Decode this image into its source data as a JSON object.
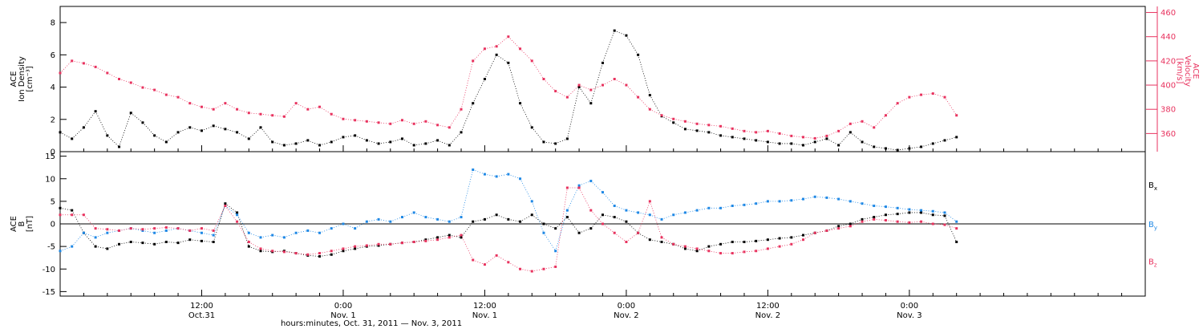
{
  "colors": {
    "black": "#000000",
    "pink": "#e8335f",
    "blue": "#1f88e5",
    "axis": "#000000"
  },
  "footer": {
    "xlabel": "hours:minutes, Oct. 31, 2011 — Nov. 3, 2011"
  },
  "x_axis": {
    "range_hours": [
      0,
      92
    ],
    "ticks": [
      {
        "hour": 12,
        "time": "12:00",
        "date": "Oct.31"
      },
      {
        "hour": 24,
        "time": "0:00",
        "date": "Nov. 1"
      },
      {
        "hour": 36,
        "time": "12:00",
        "date": "Nov. 1"
      },
      {
        "hour": 48,
        "time": "0:00",
        "date": "Nov. 2"
      },
      {
        "hour": 60,
        "time": "12:00",
        "date": "Nov. 2"
      },
      {
        "hour": 72,
        "time": "0:00",
        "date": "Nov. 3"
      }
    ]
  },
  "chart_data": [
    {
      "type": "scatter",
      "panel": "top",
      "ylabel_left": [
        "ACE",
        "Ion Density",
        "[cm⁻³]"
      ],
      "ylabel_right": [
        "ACE",
        "Velocity",
        "[km/s]"
      ],
      "ylim": [
        0,
        9
      ],
      "yticks": [
        "0",
        "2",
        "4",
        "6",
        "8"
      ],
      "ytick_values": [
        0,
        2,
        4,
        6,
        8
      ],
      "y2lim": [
        345,
        465
      ],
      "y2ticks": [
        "360",
        "380",
        "400",
        "420",
        "440",
        "460"
      ],
      "y2tick_values": [
        360,
        380,
        400,
        420,
        440,
        460
      ],
      "series": [
        {
          "name": "",
          "color": "#000000",
          "axis": "left",
          "x": [
            0,
            1,
            2,
            3,
            4,
            5,
            6,
            7,
            8,
            9,
            10,
            11,
            12,
            13,
            14,
            15,
            16,
            17,
            18,
            19,
            20,
            21,
            22,
            23,
            24,
            25,
            26,
            27,
            28,
            29,
            30,
            31,
            32,
            33,
            34,
            35,
            36,
            37,
            38,
            39,
            40,
            41,
            42,
            43,
            44,
            45,
            46,
            47,
            48,
            49,
            50,
            51,
            52,
            53,
            54,
            55,
            56,
            57,
            58,
            59,
            60,
            61,
            62,
            63,
            64,
            65,
            66,
            67,
            68,
            69,
            70,
            71,
            72,
            73,
            74,
            75,
            76
          ],
          "y": [
            1.2,
            0.8,
            1.5,
            2.5,
            1.0,
            0.3,
            2.4,
            1.8,
            1.0,
            0.6,
            1.2,
            1.5,
            1.3,
            1.6,
            1.4,
            1.2,
            0.8,
            1.5,
            0.6,
            0.4,
            0.5,
            0.7,
            0.4,
            0.6,
            0.9,
            1.0,
            0.7,
            0.5,
            0.6,
            0.8,
            0.4,
            0.5,
            0.7,
            0.4,
            1.2,
            3.0,
            4.5,
            6.0,
            5.5,
            3.0,
            1.5,
            0.6,
            0.5,
            0.8,
            4.0,
            3.0,
            5.5,
            7.5,
            7.2,
            6.0,
            3.5,
            2.2,
            1.8,
            1.4,
            1.3,
            1.2,
            1.0,
            0.9,
            0.8,
            0.7,
            0.6,
            0.5,
            0.5,
            0.4,
            0.6,
            0.8,
            0.4,
            1.2,
            0.6,
            0.3,
            0.2,
            0.1,
            0.2,
            0.3,
            0.5,
            0.7,
            0.9
          ]
        },
        {
          "name": "",
          "color": "#e8335f",
          "axis": "right",
          "x": [
            0,
            1,
            2,
            3,
            4,
            5,
            6,
            7,
            8,
            9,
            10,
            11,
            12,
            13,
            14,
            15,
            16,
            17,
            18,
            19,
            20,
            21,
            22,
            23,
            24,
            25,
            26,
            27,
            28,
            29,
            30,
            31,
            32,
            33,
            34,
            35,
            36,
            37,
            38,
            39,
            40,
            41,
            42,
            43,
            44,
            45,
            46,
            47,
            48,
            49,
            50,
            51,
            52,
            53,
            54,
            55,
            56,
            57,
            58,
            59,
            60,
            61,
            62,
            63,
            64,
            65,
            66,
            67,
            68,
            69,
            70,
            71,
            72,
            73,
            74,
            75,
            76
          ],
          "y": [
            410,
            420,
            418,
            415,
            410,
            405,
            402,
            398,
            396,
            392,
            390,
            385,
            382,
            380,
            385,
            380,
            377,
            376,
            375,
            374,
            385,
            380,
            382,
            376,
            372,
            371,
            370,
            369,
            368,
            371,
            368,
            370,
            367,
            365,
            380,
            420,
            430,
            432,
            440,
            430,
            420,
            405,
            395,
            390,
            400,
            396,
            400,
            405,
            400,
            390,
            380,
            375,
            372,
            370,
            368,
            367,
            366,
            364,
            362,
            361,
            362,
            360,
            358,
            357,
            356,
            358,
            362,
            368,
            370,
            365,
            375,
            385,
            390,
            392,
            393,
            390,
            375
          ]
        }
      ]
    },
    {
      "type": "scatter",
      "panel": "bottom",
      "ylabel_left": [
        "ACE",
        "B",
        "[nT]"
      ],
      "ylim": [
        -16,
        16
      ],
      "yticks": [
        "-15",
        "-10",
        "-5",
        "0",
        "5",
        "10",
        "15"
      ],
      "ytick_values": [
        -15,
        -10,
        -5,
        0,
        5,
        10,
        15
      ],
      "zero_line": true,
      "legend": [
        {
          "label": "B",
          "sub": "x",
          "color": "#000000"
        },
        {
          "label": "B",
          "sub": "y",
          "color": "#1f88e5"
        },
        {
          "label": "B",
          "sub": "z",
          "color": "#e8335f"
        }
      ],
      "series": [
        {
          "name": "Bx",
          "color": "#000000",
          "x": [
            0,
            1,
            2,
            3,
            4,
            5,
            6,
            7,
            8,
            9,
            10,
            11,
            12,
            13,
            14,
            15,
            16,
            17,
            18,
            19,
            20,
            21,
            22,
            23,
            24,
            25,
            26,
            27,
            28,
            29,
            30,
            31,
            32,
            33,
            34,
            35,
            36,
            37,
            38,
            39,
            40,
            41,
            42,
            43,
            44,
            45,
            46,
            47,
            48,
            49,
            50,
            51,
            52,
            53,
            54,
            55,
            56,
            57,
            58,
            59,
            60,
            61,
            62,
            63,
            64,
            65,
            66,
            67,
            68,
            69,
            70,
            71,
            72,
            73,
            74,
            75,
            76
          ],
          "y": [
            3.5,
            3.0,
            -2.0,
            -5.0,
            -5.5,
            -4.5,
            -4.0,
            -4.2,
            -4.5,
            -4.0,
            -4.2,
            -3.5,
            -3.8,
            -4.0,
            4.5,
            2.5,
            -5.0,
            -6.0,
            -6.2,
            -6.0,
            -6.5,
            -7.0,
            -7.2,
            -6.8,
            -6.0,
            -5.5,
            -5.0,
            -4.8,
            -4.5,
            -4.2,
            -4.0,
            -3.5,
            -3.0,
            -2.5,
            -3.0,
            0.5,
            1.0,
            2.0,
            1.0,
            0.5,
            2.0,
            0.0,
            -1.0,
            1.5,
            -2.0,
            -1.0,
            2.0,
            1.5,
            0.5,
            -2.0,
            -3.5,
            -4.0,
            -4.5,
            -5.5,
            -6.0,
            -5.0,
            -4.5,
            -4.0,
            -4.0,
            -3.8,
            -3.5,
            -3.2,
            -3.0,
            -2.5,
            -2.0,
            -1.5,
            -0.5,
            0.0,
            1.0,
            1.5,
            2.0,
            2.2,
            2.5,
            2.5,
            2.0,
            1.8,
            -4.0
          ]
        },
        {
          "name": "By",
          "color": "#1f88e5",
          "x": [
            0,
            1,
            2,
            3,
            4,
            5,
            6,
            7,
            8,
            9,
            10,
            11,
            12,
            13,
            14,
            15,
            16,
            17,
            18,
            19,
            20,
            21,
            22,
            23,
            24,
            25,
            26,
            27,
            28,
            29,
            30,
            31,
            32,
            33,
            34,
            35,
            36,
            37,
            38,
            39,
            40,
            41,
            42,
            43,
            44,
            45,
            46,
            47,
            48,
            49,
            50,
            51,
            52,
            53,
            54,
            55,
            56,
            57,
            58,
            59,
            60,
            61,
            62,
            63,
            64,
            65,
            66,
            67,
            68,
            69,
            70,
            71,
            72,
            73,
            74,
            75,
            76
          ],
          "y": [
            -6.0,
            -5.0,
            -2.0,
            -3.0,
            -2.0,
            -1.5,
            -1.0,
            -1.5,
            -2.0,
            -1.5,
            -1.0,
            -1.5,
            -2.0,
            -2.5,
            4.0,
            2.0,
            -2.0,
            -3.0,
            -2.5,
            -3.0,
            -2.0,
            -1.5,
            -2.0,
            -1.0,
            0.0,
            -1.0,
            0.5,
            1.0,
            0.5,
            1.5,
            2.5,
            1.5,
            1.0,
            0.5,
            1.5,
            12.0,
            11.0,
            10.5,
            11.0,
            10.0,
            5.0,
            -2.0,
            -6.0,
            3.0,
            8.5,
            9.5,
            7.0,
            4.0,
            3.0,
            2.5,
            2.0,
            1.0,
            2.0,
            2.5,
            3.0,
            3.5,
            3.5,
            4.0,
            4.2,
            4.5,
            5.0,
            5.0,
            5.2,
            5.5,
            6.0,
            5.8,
            5.5,
            5.0,
            4.5,
            4.0,
            3.8,
            3.5,
            3.2,
            3.0,
            2.8,
            2.5,
            0.5
          ]
        },
        {
          "name": "Bz",
          "color": "#e8335f",
          "x": [
            0,
            1,
            2,
            3,
            4,
            5,
            6,
            7,
            8,
            9,
            10,
            11,
            12,
            13,
            14,
            15,
            16,
            17,
            18,
            19,
            20,
            21,
            22,
            23,
            24,
            25,
            26,
            27,
            28,
            29,
            30,
            31,
            32,
            33,
            34,
            35,
            36,
            37,
            38,
            39,
            40,
            41,
            42,
            43,
            44,
            45,
            46,
            47,
            48,
            49,
            50,
            51,
            52,
            53,
            54,
            55,
            56,
            57,
            58,
            59,
            60,
            61,
            62,
            63,
            64,
            65,
            66,
            67,
            68,
            69,
            70,
            71,
            72,
            73,
            74,
            75,
            76
          ],
          "y": [
            2.0,
            2.0,
            2.0,
            -1.0,
            -1.2,
            -1.5,
            -1.0,
            -1.2,
            -1.0,
            -0.8,
            -1.0,
            -1.5,
            -1.0,
            -1.5,
            4.0,
            0.5,
            -4.0,
            -5.5,
            -6.0,
            -6.2,
            -6.5,
            -6.8,
            -6.5,
            -6.0,
            -5.5,
            -5.0,
            -4.8,
            -4.5,
            -4.5,
            -4.2,
            -4.0,
            -3.8,
            -3.5,
            -3.0,
            -2.5,
            -8.0,
            -9.0,
            -7.0,
            -8.5,
            -10.0,
            -10.5,
            -10.0,
            -9.5,
            8.0,
            8.0,
            3.0,
            0.0,
            -2.0,
            -4.0,
            -2.0,
            5.0,
            -3.0,
            -4.5,
            -5.0,
            -5.5,
            -6.0,
            -6.5,
            -6.5,
            -6.2,
            -6.0,
            -5.5,
            -5.0,
            -4.5,
            -3.5,
            -2.0,
            -1.5,
            -1.0,
            -0.5,
            0.5,
            1.0,
            0.8,
            0.5,
            0.3,
            0.5,
            0.0,
            -0.2,
            -1.0
          ]
        }
      ]
    }
  ]
}
